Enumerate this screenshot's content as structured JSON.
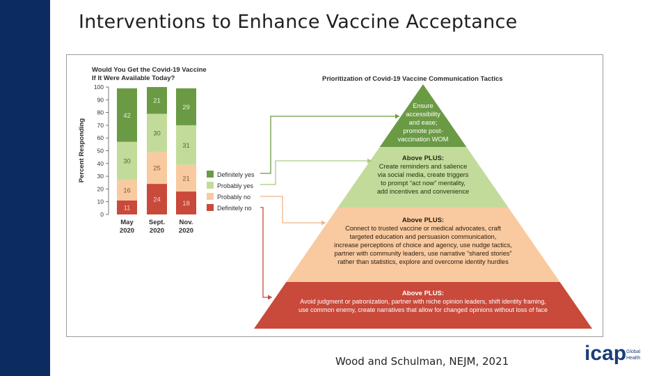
{
  "slide": {
    "title": "Interventions to Enhance Vaccine Acceptance",
    "citation": "Wood and Schulman, NEJM, 2021"
  },
  "logo": {
    "name": "icap",
    "sub1": "Global",
    "sub2": "Health",
    "color": "#1a3e7a"
  },
  "chart_data": [
    {
      "type": "bar",
      "stacked": true,
      "title_lines": [
        "Would You Get the Covid-19 Vaccine",
        "If It Were Available Today?"
      ],
      "ylabel": "Percent Responding",
      "ylim": [
        0,
        100
      ],
      "yticks": [
        "0",
        "10",
        "20",
        "30",
        "40",
        "50",
        "60",
        "70",
        "80",
        "90",
        "100"
      ],
      "categories": [
        [
          "May",
          "2020"
        ],
        [
          "Sept.",
          "2020"
        ],
        [
          "Nov.",
          "2020"
        ]
      ],
      "series": [
        {
          "name": "Definitely no",
          "color": "#c9493a",
          "textcolor": "#f6d4cc",
          "values": [
            11,
            24,
            18
          ],
          "labels": [
            "11",
            "24",
            "18"
          ]
        },
        {
          "name": "Probably no",
          "color": "#f9caa0",
          "textcolor": "#7a5a3a",
          "values": [
            16,
            25,
            21
          ],
          "labels": [
            "16",
            "25",
            "21"
          ]
        },
        {
          "name": "Probably yes",
          "color": "#c3db9a",
          "textcolor": "#4d6a2e",
          "values": [
            30,
            30,
            31
          ],
          "labels": [
            "30",
            "30",
            "31"
          ]
        },
        {
          "name": "Definitely yes",
          "color": "#6b9a45",
          "textcolor": "#e4f0d6",
          "values": [
            42,
            21,
            29
          ],
          "labels": [
            "42",
            "21",
            "29"
          ]
        }
      ],
      "legend": [
        "Definitely yes",
        "Probably yes",
        "Probably no",
        "Definitely no"
      ]
    },
    {
      "type": "diagram",
      "title": "Prioritization of Covid-19 Vaccine Communication Tactics",
      "tiers": [
        {
          "color": "#6b9a45",
          "textcolor": "#ffffff",
          "heading": "",
          "lines": [
            "Ensure",
            "accessibility",
            "and ease;",
            "promote post-",
            "vaccination WOM"
          ]
        },
        {
          "color": "#c3db9a",
          "textcolor": "#1f2f12",
          "heading": "Above PLUS:",
          "lines": [
            "Create reminders and salience",
            "via social media, create triggers",
            "to prompt “act now” mentality,",
            "add incentives and convenience"
          ]
        },
        {
          "color": "#f9caa0",
          "textcolor": "#2a1a0c",
          "heading": "Above PLUS:",
          "lines": [
            "Connect to trusted vaccine or medical advocates, craft",
            "targeted education and persuasion communication,",
            "increase perceptions of choice and agency, use nudge tactics,",
            "partner with community leaders, use narrative “shared stories”",
            "rather than statistics, explore and overcome identity hurdles"
          ]
        },
        {
          "color": "#c9493a",
          "textcolor": "#ffffff",
          "heading": "Above PLUS:",
          "lines": [
            "Avoid judgment or patronization, partner with niche opinion leaders, shift identity framing,",
            "use common enemy, create narratives that allow for changed opinions without loss of face"
          ]
        }
      ]
    }
  ]
}
